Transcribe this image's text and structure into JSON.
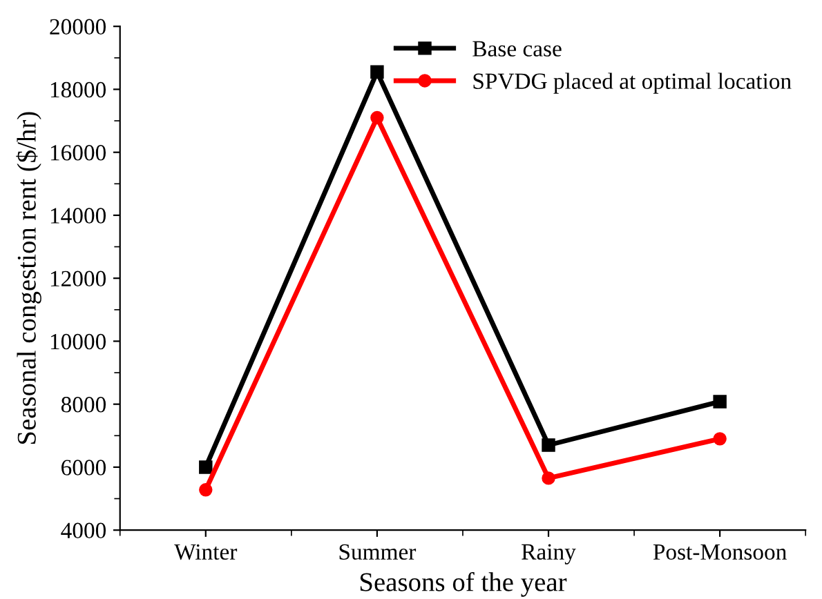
{
  "chart_data": {
    "type": "line",
    "xlabel": "Seasons of the year",
    "ylabel": "Seasonal congestion rent ($/hr)",
    "categories": [
      "Winter",
      "Summer",
      "Rainy",
      "Post-Monsoon"
    ],
    "series": [
      {
        "name": "Base case",
        "color": "#000000",
        "marker": "square",
        "values": [
          6000,
          18550,
          6700,
          8080
        ]
      },
      {
        "name": "SPVDG placed at optimal location",
        "color": "#ff0000",
        "marker": "circle",
        "values": [
          5280,
          17100,
          5650,
          6900
        ]
      }
    ],
    "ylim": [
      4000,
      20000
    ],
    "yticks": [
      4000,
      6000,
      8000,
      10000,
      12000,
      14000,
      16000,
      18000,
      20000
    ],
    "grid": false,
    "legend": "top right",
    "line_style": "solid"
  }
}
